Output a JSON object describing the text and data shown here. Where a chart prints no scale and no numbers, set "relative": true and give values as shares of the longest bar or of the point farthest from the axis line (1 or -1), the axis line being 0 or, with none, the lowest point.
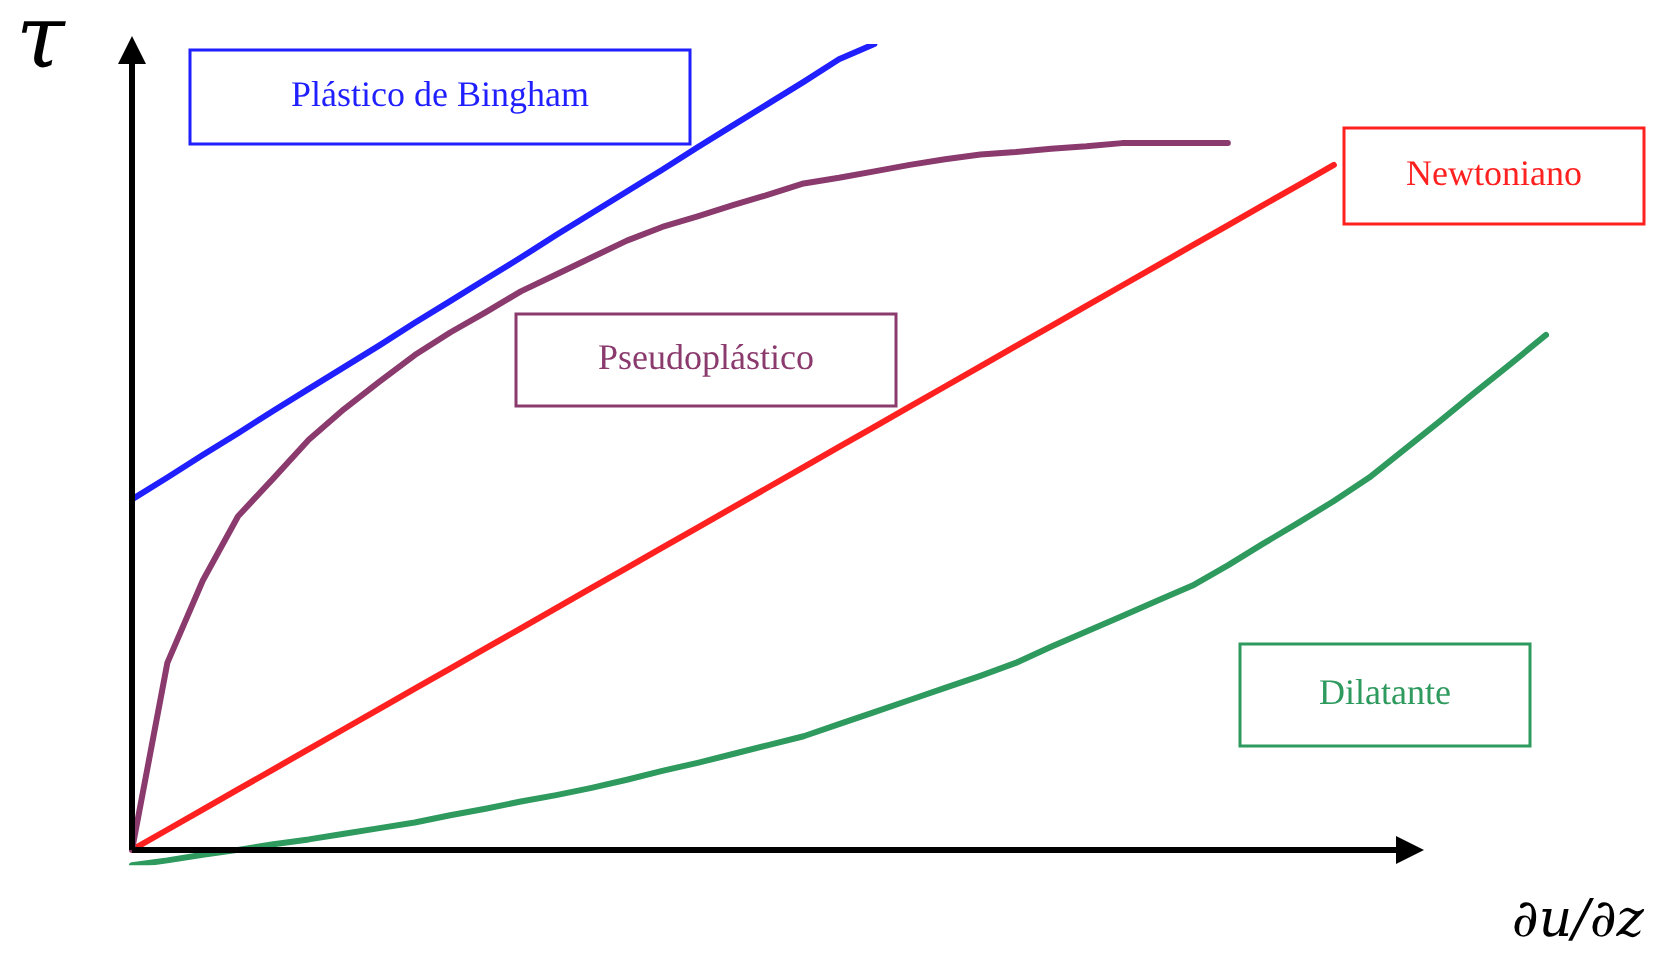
{
  "chart_data": {
    "type": "line",
    "relative": true,
    "xlabel": "∂u/∂z",
    "ylabel": "τ",
    "legend": false,
    "grid": false,
    "marker": "none",
    "categories": [
      null,
      null,
      null,
      null,
      null,
      null,
      null,
      null,
      null,
      null,
      null,
      null,
      null,
      null,
      null,
      null,
      null,
      null,
      null,
      null,
      null,
      null,
      null,
      null,
      null,
      null,
      null,
      null,
      null,
      null,
      null,
      null,
      null,
      null,
      null,
      null,
      null,
      null,
      null,
      null,
      null
    ],
    "series": [
      {
        "name": "Plástico de Bingham",
        "color": "#1f1fff",
        "values": [
          0.435,
          0.462,
          0.49,
          0.517,
          0.545,
          0.572,
          0.599,
          0.626,
          0.654,
          0.681,
          0.708,
          0.735,
          0.763,
          0.79,
          0.817,
          0.844,
          0.872,
          0.899,
          0.926,
          0.953,
          0.981,
          1,
          null,
          null,
          null,
          null,
          null,
          null,
          null,
          null,
          null,
          null,
          null,
          null,
          null,
          null,
          null,
          null,
          null,
          null,
          null
        ]
      },
      {
        "name": "Pseudoplástico",
        "color": "#8b3a6e",
        "values": [
          0,
          0.232,
          0.334,
          0.414,
          0.461,
          0.509,
          0.547,
          0.581,
          0.614,
          0.642,
          0.667,
          0.693,
          0.714,
          0.735,
          0.756,
          0.773,
          0.786,
          0.8,
          0.813,
          0.827,
          0.834,
          0.842,
          0.85,
          0.857,
          0.863,
          0.866,
          0.87,
          0.873,
          0.877,
          0.877,
          0.877,
          0.877,
          null,
          null,
          null,
          null,
          null,
          null,
          null,
          null,
          null
        ]
      },
      {
        "name": "Newtoniano",
        "color": "#ff2020",
        "values": [
          0,
          0.025,
          0.05,
          0.075,
          0.1,
          0.125,
          0.15,
          0.175,
          0.2,
          0.225,
          0.25,
          0.275,
          0.3,
          0.325,
          0.35,
          0.375,
          0.4,
          0.425,
          0.45,
          0.475,
          0.5,
          0.525,
          0.55,
          0.575,
          0.6,
          0.625,
          0.65,
          0.675,
          0.7,
          0.725,
          0.75,
          0.775,
          0.8,
          0.825,
          0.85,
          null,
          null,
          null,
          null,
          null,
          null
        ]
      },
      {
        "name": "Dilatante",
        "color": "#2e9a5e",
        "values": [
          -0.019,
          -0.013,
          -0.006,
          0,
          0.007,
          0.013,
          0.02,
          0.027,
          0.034,
          0.043,
          0.051,
          0.06,
          0.068,
          0.077,
          0.087,
          0.098,
          0.108,
          0.119,
          0.13,
          0.141,
          0.156,
          0.171,
          0.186,
          0.201,
          0.216,
          0.232,
          0.252,
          0.271,
          0.29,
          0.309,
          0.328,
          0.353,
          0.38,
          0.406,
          0.433,
          0.462,
          0.497,
          0.532,
          0.568,
          0.603,
          0.639
        ]
      }
    ]
  }
}
